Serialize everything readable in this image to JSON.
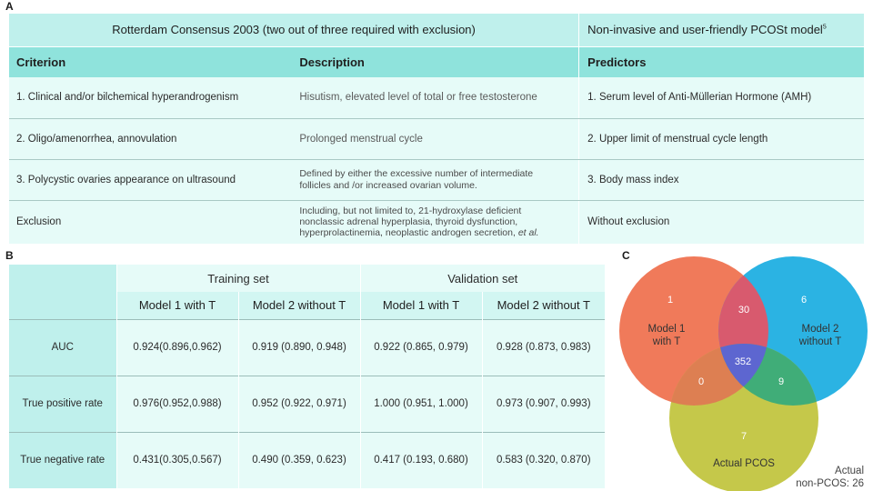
{
  "panelA": {
    "label": "A",
    "header_left": "Rotterdam Consensus 2003 (two out of three required with exclusion)",
    "header_right": "Non-invasive and user-friendly PCOSt  model",
    "header_right_sup": "5",
    "col_criterion": "Criterion",
    "col_description": "Description",
    "col_predictors": "Predictors",
    "rows": [
      {
        "criterion": "1. Clinical and/or bilchemical hyperandrogenism",
        "description": "Hisutism, elevated level of total or free testosterone",
        "predictor": "1. Serum level of Anti-Müllerian Hormone (AMH)"
      },
      {
        "criterion": "2. Oligo/amenorrhea, annovulation",
        "description": "Prolonged menstrual cycle",
        "predictor": "2. Upper limit of menstrual cycle length"
      },
      {
        "criterion": "3. Polycystic ovaries appearance on ultrasound",
        "description_line1": "Defined by either the excessive number of intermediate",
        "description_line2": "follicles and /or increased ovarian volume.",
        "predictor": "3. Body mass index"
      },
      {
        "criterion": "Exclusion",
        "description_line1": "Including, but not limited to, 21-hydroxylase deficient",
        "description_line2": "nonclassic adrenal hyperplasia, thyroid dysfunction,",
        "description_line3": "hyperprolactinemia, neoplastic androgen secretion,",
        "description_etal": "et al.",
        "predictor": "Without exclusion"
      }
    ]
  },
  "panelB": {
    "label": "B",
    "training_set": "Training set",
    "validation_set": "Validation set",
    "model1": "Model 1 with T",
    "model2": "Model 2 without T",
    "rows": [
      {
        "name": "AUC",
        "values": [
          "0.924(0.896,0.962)",
          "0.919 (0.890, 0.948)",
          "0.922 (0.865, 0.979)",
          "0.928 (0.873, 0.983)"
        ]
      },
      {
        "name": "True positive rate",
        "values": [
          "0.976(0.952,0.988)",
          "0.952 (0.922, 0.971)",
          "1.000 (0.951, 1.000)",
          "0.973 (0.907, 0.993)"
        ]
      },
      {
        "name": "True negative rate",
        "values": [
          "0.431(0.305,0.567)",
          "0.490 (0.359, 0.623)",
          "0.417 (0.193, 0.680)",
          "0.583 (0.320, 0.870)"
        ]
      }
    ]
  },
  "panelC": {
    "label": "C",
    "set1_line1": "Model 1",
    "set1_line2": "with T",
    "set2_line1": "Model 2",
    "set2_line2": "without T",
    "set3": "Actual PCOS",
    "only1": "1",
    "only2": "6",
    "only3": "7",
    "s12": "30",
    "s13": "0",
    "s23": "9",
    "s123": "352",
    "outside_line1": "Actual",
    "outside_line2": "non-PCOS: 26",
    "colors": {
      "model1": "#f07a5a",
      "model2": "#2bb3e3",
      "actual": "#c5c84a",
      "m1_m2": "#d85a6e",
      "m1_actual": "#dd7f52",
      "m2_actual": "#40ad78",
      "all": "#5d66d0"
    }
  }
}
